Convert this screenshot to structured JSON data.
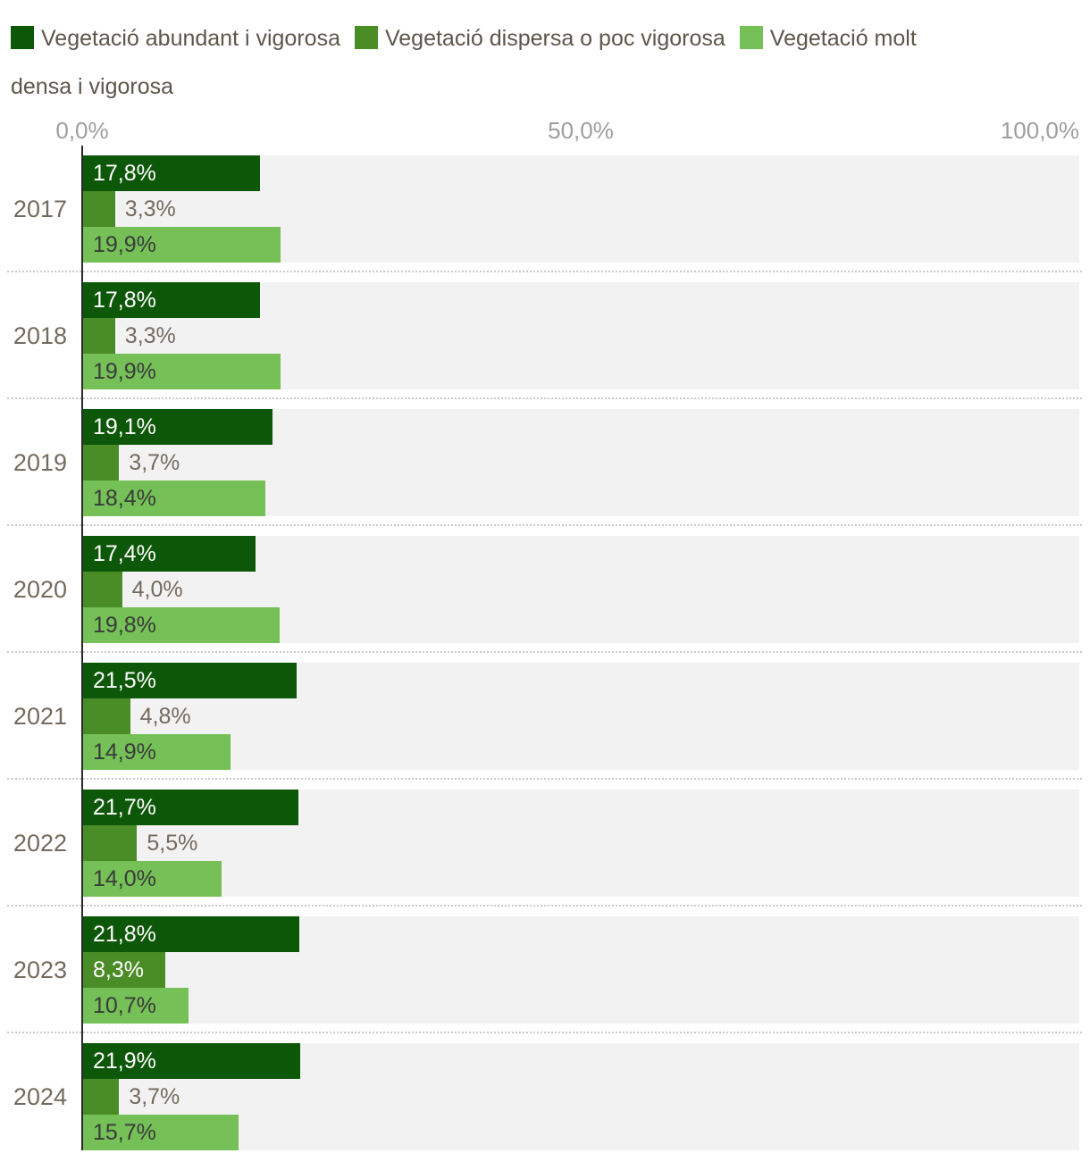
{
  "legend": {
    "items": [
      {
        "label": "Vegetació abundant i vigorosa",
        "color": "#0d5708"
      },
      {
        "label": "Vegetació dispersa o poc vigorosa",
        "color": "#4a8c26"
      },
      {
        "label": "Vegetació molt densa i vigorosa",
        "color": "#75c057"
      }
    ]
  },
  "chart_data": {
    "type": "bar",
    "orientation": "horizontal",
    "title": "",
    "xlabel": "",
    "ylabel": "",
    "xlim": [
      0,
      100
    ],
    "tick_labels": [
      "0,0%",
      "50,0%",
      "100,0%"
    ],
    "grid": "vertical gridline at 50%, dotted separators between year groups",
    "legend_position": "top",
    "categories": [
      "2017",
      "2018",
      "2019",
      "2020",
      "2021",
      "2022",
      "2023",
      "2024"
    ],
    "series": [
      {
        "name": "Vegetació abundant i vigorosa",
        "color": "#0d5708",
        "label_color_inside": "#ffffff",
        "values": [
          17.8,
          17.8,
          19.1,
          17.4,
          21.5,
          21.7,
          21.8,
          21.9
        ],
        "labels": [
          "17,8%",
          "17,8%",
          "19,1%",
          "17,4%",
          "21,5%",
          "21,7%",
          "21,8%",
          "21,9%"
        ]
      },
      {
        "name": "Vegetació dispersa o poc vigorosa",
        "color": "#4a8c26",
        "label_color_inside": "#ffffff",
        "values": [
          3.3,
          3.3,
          3.7,
          4.0,
          4.8,
          5.5,
          8.3,
          3.7
        ],
        "labels": [
          "3,3%",
          "3,3%",
          "3,7%",
          "4,0%",
          "4,8%",
          "5,5%",
          "8,3%",
          "3,7%"
        ]
      },
      {
        "name": "Vegetació molt densa i vigorosa",
        "color": "#75c057",
        "label_color_inside": "#3b3b3b",
        "values": [
          19.9,
          19.9,
          18.4,
          19.8,
          14.9,
          14.0,
          10.7,
          15.7
        ],
        "labels": [
          "19,9%",
          "19,9%",
          "18,4%",
          "19,8%",
          "14,9%",
          "14,0%",
          "10,7%",
          "15,7%"
        ]
      }
    ],
    "value_label_color_outside": "#756a5e",
    "track_color": "#f2f2f2"
  }
}
